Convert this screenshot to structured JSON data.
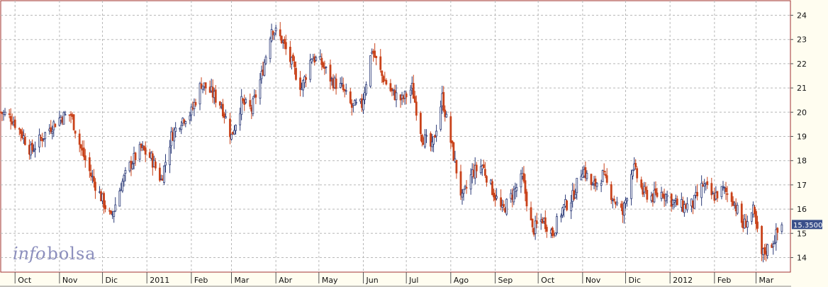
{
  "watermark": {
    "part1": "info",
    "part2": "bolsa"
  },
  "colors": {
    "up": "#2b3a78",
    "down": "#c9421a",
    "grid": "#b8b8b8",
    "frame": "#9a3030",
    "price_box": "#3a4f8a"
  },
  "chart_data": {
    "type": "candlestick",
    "title": "",
    "xlabel": "",
    "ylabel": "",
    "ylim": [
      13.4,
      24.6
    ],
    "y_ticks": [
      14,
      15,
      16,
      17,
      18,
      19,
      20,
      21,
      22,
      23,
      24
    ],
    "y_tick_labels": [
      "14",
      "15",
      "16",
      "17",
      "18",
      "19",
      "20",
      "21",
      "22",
      "23",
      "24"
    ],
    "xlim": [
      "2010-09-21",
      "2012-03-25"
    ],
    "x_ticks": [
      {
        "date": "2010-10-01",
        "label": "Oct"
      },
      {
        "date": "2010-11-01",
        "label": "Nov"
      },
      {
        "date": "2010-12-01",
        "label": "Dic"
      },
      {
        "date": "2011-01-01",
        "label": "2011"
      },
      {
        "date": "2011-02-01",
        "label": "Feb"
      },
      {
        "date": "2011-03-01",
        "label": "Mar"
      },
      {
        "date": "2011-04-01",
        "label": "Abr"
      },
      {
        "date": "2011-05-01",
        "label": "May"
      },
      {
        "date": "2011-06-01",
        "label": "Jun"
      },
      {
        "date": "2011-07-01",
        "label": "Jul"
      },
      {
        "date": "2011-08-01",
        "label": "Ago"
      },
      {
        "date": "2011-09-01",
        "label": "Sep"
      },
      {
        "date": "2011-10-01",
        "label": "Oct"
      },
      {
        "date": "2011-11-01",
        "label": "Nov"
      },
      {
        "date": "2011-12-01",
        "label": "Dic"
      },
      {
        "date": "2012-01-01",
        "label": "2012"
      },
      {
        "date": "2012-02-01",
        "label": "Feb"
      },
      {
        "date": "2012-03-01",
        "label": "Mar"
      }
    ],
    "grid": true,
    "last_price": "15.3500",
    "close_path": [
      [
        "2010-09-21",
        20.0
      ],
      [
        "2010-09-28",
        19.8
      ],
      [
        "2010-10-05",
        19.2
      ],
      [
        "2010-10-12",
        18.4
      ],
      [
        "2010-10-19",
        18.9
      ],
      [
        "2010-10-26",
        19.4
      ],
      [
        "2010-11-02",
        19.8
      ],
      [
        "2010-11-09",
        19.9
      ],
      [
        "2010-11-16",
        18.5
      ],
      [
        "2010-11-23",
        17.4
      ],
      [
        "2010-11-30",
        16.5
      ],
      [
        "2010-12-07",
        15.6
      ],
      [
        "2010-12-14",
        17.0
      ],
      [
        "2010-12-21",
        17.9
      ],
      [
        "2010-12-28",
        18.5
      ],
      [
        "2011-01-04",
        18.1
      ],
      [
        "2011-01-11",
        17.2
      ],
      [
        "2011-01-18",
        19.0
      ],
      [
        "2011-01-25",
        19.7
      ],
      [
        "2011-02-01",
        20.0
      ],
      [
        "2011-02-08",
        21.2
      ],
      [
        "2011-02-15",
        20.8
      ],
      [
        "2011-02-22",
        20.3
      ],
      [
        "2011-03-01",
        19.0
      ],
      [
        "2011-03-08",
        20.4
      ],
      [
        "2011-03-15",
        20.1
      ],
      [
        "2011-03-22",
        21.5
      ],
      [
        "2011-03-29",
        23.5
      ],
      [
        "2011-04-05",
        23.0
      ],
      [
        "2011-04-12",
        22.0
      ],
      [
        "2011-04-19",
        21.0
      ],
      [
        "2011-04-26",
        22.3
      ],
      [
        "2011-05-03",
        22.0
      ],
      [
        "2011-05-10",
        21.3
      ],
      [
        "2011-05-17",
        21.0
      ],
      [
        "2011-05-24",
        20.2
      ],
      [
        "2011-05-31",
        20.3
      ],
      [
        "2011-06-07",
        22.6
      ],
      [
        "2011-06-14",
        21.5
      ],
      [
        "2011-06-21",
        20.8
      ],
      [
        "2011-06-28",
        20.5
      ],
      [
        "2011-07-05",
        21.0
      ],
      [
        "2011-07-12",
        19.0
      ],
      [
        "2011-07-19",
        18.5
      ],
      [
        "2011-07-26",
        20.6
      ],
      [
        "2011-08-02",
        18.5
      ],
      [
        "2011-08-09",
        16.4
      ],
      [
        "2011-08-16",
        17.5
      ],
      [
        "2011-08-23",
        17.8
      ],
      [
        "2011-08-30",
        16.8
      ],
      [
        "2011-09-06",
        15.9
      ],
      [
        "2011-09-13",
        16.6
      ],
      [
        "2011-09-20",
        17.3
      ],
      [
        "2011-09-27",
        15.1
      ],
      [
        "2011-10-04",
        15.6
      ],
      [
        "2011-10-11",
        15.0
      ],
      [
        "2011-10-18",
        16.0
      ],
      [
        "2011-10-25",
        16.5
      ],
      [
        "2011-11-01",
        17.7
      ],
      [
        "2011-11-08",
        16.9
      ],
      [
        "2011-11-15",
        17.4
      ],
      [
        "2011-11-22",
        16.5
      ],
      [
        "2011-11-29",
        15.8
      ],
      [
        "2011-12-06",
        17.8
      ],
      [
        "2011-12-13",
        16.7
      ],
      [
        "2011-12-20",
        16.5
      ],
      [
        "2011-12-27",
        16.7
      ],
      [
        "2012-01-03",
        16.3
      ],
      [
        "2012-01-10",
        16.1
      ],
      [
        "2012-01-17",
        16.2
      ],
      [
        "2012-01-24",
        17.0
      ],
      [
        "2012-01-31",
        16.5
      ],
      [
        "2012-02-07",
        16.8
      ],
      [
        "2012-02-14",
        16.4
      ],
      [
        "2012-02-21",
        15.3
      ],
      [
        "2012-02-28",
        15.9
      ],
      [
        "2012-03-05",
        14.1
      ],
      [
        "2012-03-12",
        14.6
      ],
      [
        "2012-03-19",
        15.35
      ]
    ]
  }
}
